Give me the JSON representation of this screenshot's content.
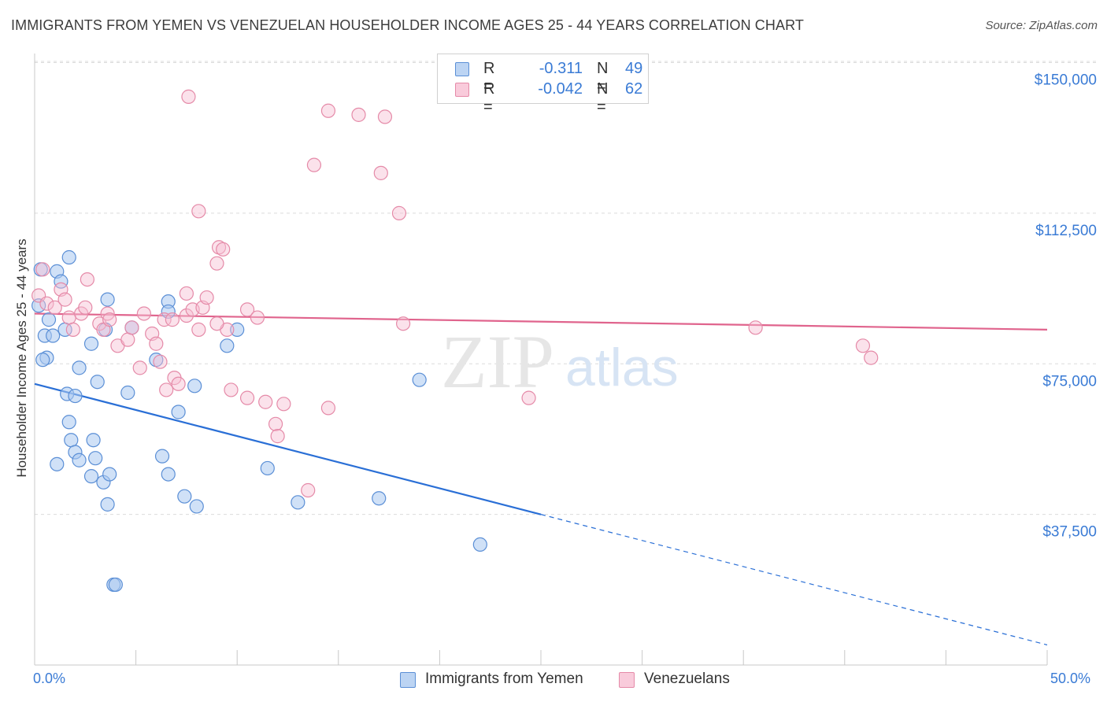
{
  "title": "IMMIGRANTS FROM YEMEN VS VENEZUELAN HOUSEHOLDER INCOME AGES 25 - 44 YEARS CORRELATION CHART",
  "source": "Source: ZipAtlas.com",
  "watermark": {
    "zip": "ZIP",
    "atlas": "atlas"
  },
  "legend": {
    "rows": [
      {
        "r_label": "R =",
        "r_value": "-0.311",
        "n_label": "N =",
        "n_value": "49"
      },
      {
        "r_label": "R =",
        "r_value": "-0.042",
        "n_label": "N =",
        "n_value": "62"
      }
    ]
  },
  "bottom_legend": {
    "series1": "Immigrants from Yemen",
    "series2": "Venezuelans"
  },
  "x_axis": {
    "min_label": "0.0%",
    "max_label": "50.0%"
  },
  "colors": {
    "series1_fill": "#a9c8f0",
    "series1_stroke": "#5b8fd6",
    "series1_line": "#2a6fd6",
    "series2_fill": "#f7bfd2",
    "series2_stroke": "#e58aa8",
    "series2_line": "#e0648d",
    "grid": "#dcdcdc",
    "accent_text": "#3a7bd5"
  },
  "chart_data": {
    "type": "scatter",
    "title": "IMMIGRANTS FROM YEMEN VS VENEZUELAN HOUSEHOLDER INCOME AGES 25 - 44 YEARS CORRELATION CHART",
    "xlabel": "",
    "ylabel": "Householder Income Ages 25 - 44 years",
    "xlim": [
      0,
      50
    ],
    "ylim": [
      0,
      155000
    ],
    "y_ticks": [
      {
        "value": 37500,
        "label": "$37,500"
      },
      {
        "value": 75000,
        "label": "$75,000"
      },
      {
        "value": 112500,
        "label": "$112,500"
      },
      {
        "value": 150000,
        "label": "$150,000"
      }
    ],
    "x_tick_values": [
      0,
      5,
      10,
      15,
      20,
      25,
      30,
      35,
      40,
      45,
      50
    ],
    "series": [
      {
        "name": "Immigrants from Yemen",
        "r": -0.311,
        "n": 49,
        "trend": {
          "x0": 0,
          "y0": 70000,
          "x_solid_end": 25,
          "x1": 50,
          "y1": 5000
        },
        "points": [
          [
            0.2,
            89500
          ],
          [
            0.3,
            98500
          ],
          [
            0.5,
            82000
          ],
          [
            0.6,
            76500
          ],
          [
            0.7,
            86000
          ],
          [
            0.9,
            82000
          ],
          [
            1.1,
            98000
          ],
          [
            1.3,
            95500
          ],
          [
            1.5,
            83500
          ],
          [
            1.7,
            101500
          ],
          [
            0.4,
            76000
          ],
          [
            1.6,
            67500
          ],
          [
            2.0,
            67000
          ],
          [
            1.7,
            60500
          ],
          [
            1.1,
            50000
          ],
          [
            1.8,
            56000
          ],
          [
            2.0,
            53000
          ],
          [
            2.2,
            51000
          ],
          [
            2.9,
            56000
          ],
          [
            3.0,
            51500
          ],
          [
            2.8,
            47000
          ],
          [
            2.2,
            74000
          ],
          [
            2.8,
            80000
          ],
          [
            3.1,
            70500
          ],
          [
            3.6,
            91000
          ],
          [
            3.4,
            45500
          ],
          [
            3.7,
            47500
          ],
          [
            3.6,
            40000
          ],
          [
            3.5,
            83500
          ],
          [
            3.9,
            20000
          ],
          [
            4.0,
            20000
          ],
          [
            4.6,
            67800
          ],
          [
            4.8,
            84000
          ],
          [
            6.0,
            76000
          ],
          [
            6.3,
            52000
          ],
          [
            6.6,
            47500
          ],
          [
            7.4,
            42000
          ],
          [
            6.6,
            90500
          ],
          [
            6.6,
            88000
          ],
          [
            8.0,
            39500
          ],
          [
            7.1,
            63000
          ],
          [
            7.9,
            69500
          ],
          [
            9.5,
            79500
          ],
          [
            10.0,
            83500
          ],
          [
            11.5,
            49000
          ],
          [
            13.0,
            40500
          ],
          [
            17.0,
            41500
          ],
          [
            19.0,
            71000
          ],
          [
            22.0,
            30000
          ]
        ]
      },
      {
        "name": "Venezuelans",
        "r": -0.042,
        "n": 62,
        "trend": {
          "x0": 0,
          "y0": 87500,
          "x1": 50,
          "y1": 83500
        },
        "points": [
          [
            0.2,
            92000
          ],
          [
            0.4,
            98500
          ],
          [
            0.6,
            90000
          ],
          [
            1.0,
            89000
          ],
          [
            1.3,
            93500
          ],
          [
            1.5,
            91000
          ],
          [
            1.7,
            86500
          ],
          [
            1.9,
            83500
          ],
          [
            2.3,
            87500
          ],
          [
            2.5,
            89000
          ],
          [
            2.6,
            96000
          ],
          [
            3.2,
            85000
          ],
          [
            3.4,
            83500
          ],
          [
            3.6,
            87500
          ],
          [
            3.7,
            86000
          ],
          [
            4.1,
            79500
          ],
          [
            4.6,
            81000
          ],
          [
            4.8,
            84000
          ],
          [
            5.2,
            74000
          ],
          [
            5.4,
            87500
          ],
          [
            5.8,
            82500
          ],
          [
            6.0,
            80000
          ],
          [
            6.2,
            75500
          ],
          [
            6.4,
            86000
          ],
          [
            6.5,
            68500
          ],
          [
            6.8,
            86000
          ],
          [
            6.9,
            71500
          ],
          [
            7.1,
            70000
          ],
          [
            7.5,
            87000
          ],
          [
            7.5,
            92500
          ],
          [
            7.8,
            88500
          ],
          [
            8.1,
            83500
          ],
          [
            8.1,
            113000
          ],
          [
            8.3,
            89000
          ],
          [
            8.5,
            91500
          ],
          [
            9.0,
            100000
          ],
          [
            9.1,
            104000
          ],
          [
            9.3,
            103500
          ],
          [
            9.5,
            83500
          ],
          [
            9.7,
            68500
          ],
          [
            10.5,
            66500
          ],
          [
            10.5,
            88500
          ],
          [
            11.0,
            86500
          ],
          [
            11.4,
            65500
          ],
          [
            11.9,
            60000
          ],
          [
            12.0,
            57000
          ],
          [
            12.3,
            65000
          ],
          [
            13.8,
            124500
          ],
          [
            13.5,
            43500
          ],
          [
            14.5,
            64000
          ],
          [
            14.5,
            138000
          ],
          [
            16.0,
            137000
          ],
          [
            17.3,
            136500
          ],
          [
            17.1,
            122500
          ],
          [
            18.0,
            112500
          ],
          [
            18.2,
            85000
          ],
          [
            24.4,
            66500
          ],
          [
            35.6,
            84000
          ],
          [
            40.9,
            79500
          ],
          [
            41.3,
            76500
          ],
          [
            9.0,
            85000
          ],
          [
            7.6,
            141500
          ]
        ]
      }
    ]
  }
}
